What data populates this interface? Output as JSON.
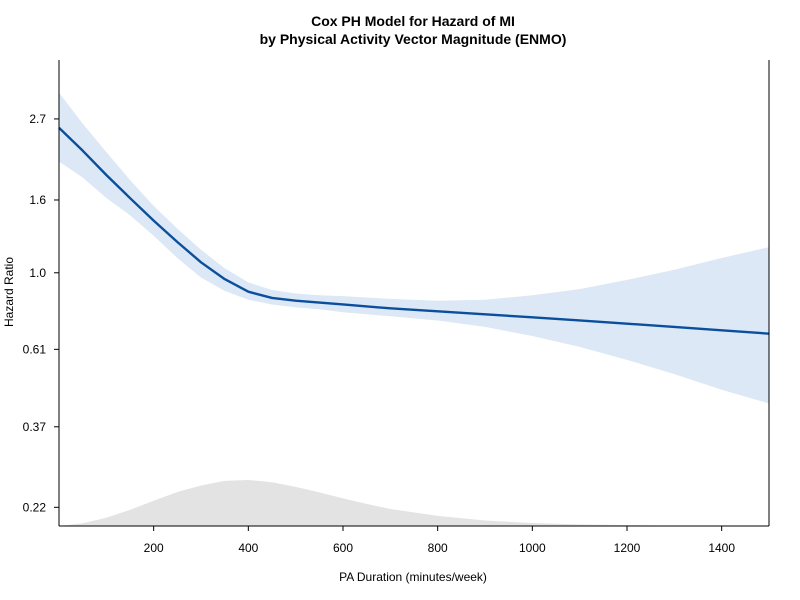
{
  "chart_data": {
    "type": "line",
    "title": "Cox PH Model for Hazard of MI",
    "subtitle": "by Physical Activity Vector Magnitude (ENMO)",
    "xlabel": "PA Duration (minutes/week)",
    "ylabel": "Hazard Ratio",
    "xlim": [
      0,
      1500
    ],
    "ylim_hr": [
      0.195,
      3.95
    ],
    "y_scale": "log",
    "x_ticks": [
      200,
      400,
      600,
      800,
      1000,
      1200,
      1400
    ],
    "x_tick_labels": [
      "200",
      "400",
      "600",
      "800",
      "1000",
      "1200",
      "1400"
    ],
    "y_ticks": [
      0.22,
      0.37,
      0.61,
      1.0,
      1.6,
      2.7
    ],
    "y_tick_labels": [
      "0.22",
      "0.37",
      "0.61",
      "1.0",
      "1.6",
      "2.7"
    ],
    "grid": false,
    "colors": {
      "line": "#0b4f9c",
      "band": "#dce8f5",
      "density": "#e3e3e3",
      "axis": "#000000"
    },
    "series": [
      {
        "x": [
          0,
          50,
          100,
          150,
          200,
          250,
          300,
          350,
          400,
          450,
          500,
          550,
          600,
          700,
          800,
          900,
          1000,
          1100,
          1200,
          1300,
          1400,
          1500
        ],
        "hazard_ratio": [
          2.55,
          2.2,
          1.88,
          1.62,
          1.4,
          1.22,
          1.07,
          0.96,
          0.885,
          0.85,
          0.835,
          0.825,
          0.815,
          0.795,
          0.78,
          0.765,
          0.75,
          0.735,
          0.72,
          0.705,
          0.69,
          0.675
        ],
        "ci_lower": [
          2.05,
          1.85,
          1.62,
          1.45,
          1.27,
          1.1,
          0.97,
          0.89,
          0.84,
          0.815,
          0.8,
          0.79,
          0.775,
          0.755,
          0.735,
          0.705,
          0.665,
          0.62,
          0.57,
          0.52,
          0.47,
          0.43
        ],
        "ci_upper": [
          3.2,
          2.62,
          2.18,
          1.82,
          1.54,
          1.33,
          1.16,
          1.03,
          0.94,
          0.895,
          0.875,
          0.865,
          0.86,
          0.845,
          0.835,
          0.84,
          0.865,
          0.9,
          0.955,
          1.02,
          1.1,
          1.18
        ]
      }
    ],
    "density": {
      "x": [
        0,
        50,
        100,
        150,
        200,
        250,
        300,
        350,
        400,
        450,
        500,
        550,
        600,
        650,
        700,
        800,
        900,
        1000,
        1100,
        1200,
        1300,
        1400,
        1500
      ],
      "density": [
        0.0,
        0.06,
        0.18,
        0.35,
        0.55,
        0.74,
        0.88,
        0.98,
        1.0,
        0.95,
        0.85,
        0.73,
        0.6,
        0.48,
        0.37,
        0.22,
        0.12,
        0.065,
        0.035,
        0.018,
        0.009,
        0.004,
        0.0
      ]
    }
  }
}
